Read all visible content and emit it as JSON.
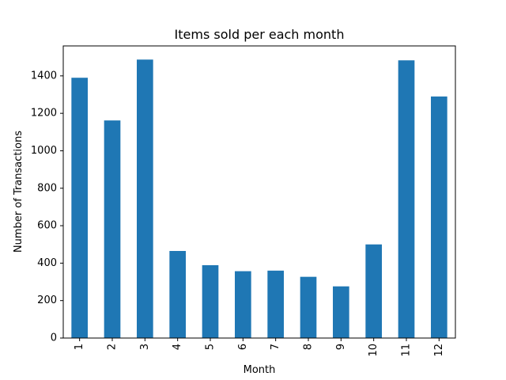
{
  "chart_data": {
    "type": "bar",
    "title": "Items sold per each month",
    "xlabel": "Month",
    "ylabel": "Number of Transactions",
    "categories": [
      "1",
      "2",
      "3",
      "4",
      "5",
      "6",
      "7",
      "8",
      "9",
      "10",
      "11",
      "12"
    ],
    "values": [
      1390,
      1162,
      1487,
      465,
      389,
      357,
      360,
      327,
      276,
      500,
      1483,
      1290
    ],
    "ylim": [
      0,
      1560
    ],
    "yticks": [
      0,
      200,
      400,
      600,
      800,
      1000,
      1200,
      1400
    ],
    "grid": false,
    "bar_color": "#1f77b4",
    "x_tick_rotation": "vertical"
  }
}
